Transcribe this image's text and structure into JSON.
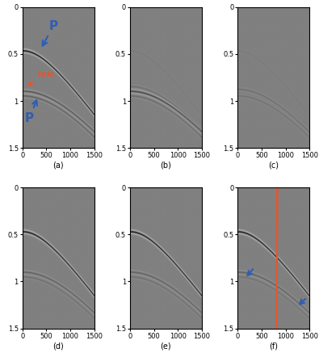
{
  "chart_data": [
    {
      "type": "image",
      "xlabel": "(a)",
      "xlim": [
        0,
        1500
      ],
      "ylim": [
        1.5,
        0
      ],
      "xticks": [
        0,
        500,
        1000,
        1500
      ],
      "yticks": [
        0,
        0.5,
        1,
        1.5
      ],
      "events": [
        {
          "t0": 0.47,
          "v": 1430,
          "amplitude": 1.0
        },
        {
          "t0": 0.9,
          "v": 1530,
          "amplitude": 0.4
        },
        {
          "t0": 0.95,
          "v": 1480,
          "amplitude": 0.3
        }
      ],
      "annotations": [
        {
          "text": "P",
          "x": 650,
          "y": 0.2,
          "arrow_to": [
            380,
            0.45
          ],
          "color": "#2e5db5"
        },
        {
          "text": "P",
          "x": 150,
          "y": 1.18,
          "arrow_to": [
            330,
            0.95
          ],
          "color": "#2e5db5"
        },
        {
          "text": "FSM",
          "x": 480,
          "y": 0.73,
          "arrow_to": [
            60,
            0.85
          ],
          "color": "#e8552a"
        }
      ]
    },
    {
      "type": "image",
      "xlabel": "(b)",
      "xlim": [
        0,
        1500
      ],
      "ylim": [
        1.5,
        0
      ],
      "xticks": [
        0,
        500,
        1000,
        1500
      ],
      "yticks": [
        0,
        0.5,
        1,
        1.5
      ],
      "events": [
        {
          "t0": 0.47,
          "v": 1430,
          "amplitude": 0.05
        },
        {
          "t0": 0.85,
          "v": 1500,
          "amplitude": 0.15
        },
        {
          "t0": 0.9,
          "v": 1530,
          "amplitude": 0.55
        },
        {
          "t0": 0.95,
          "v": 1480,
          "amplitude": 0.2
        }
      ]
    },
    {
      "type": "image",
      "xlabel": "(c)",
      "xlim": [
        0,
        1500
      ],
      "ylim": [
        1.5,
        0
      ],
      "xticks": [
        0,
        500,
        1000,
        1500
      ],
      "yticks": [
        0,
        0.5,
        1,
        1.5
      ],
      "events": [
        {
          "t0": 0.47,
          "v": 1430,
          "amplitude": 0.04
        },
        {
          "t0": 0.88,
          "v": 1500,
          "amplitude": 0.15
        },
        {
          "t0": 0.95,
          "v": 1480,
          "amplitude": 0.12
        }
      ]
    },
    {
      "type": "image",
      "xlabel": "(d)",
      "xlim": [
        0,
        1500
      ],
      "ylim": [
        1.5,
        0
      ],
      "xticks": [
        0,
        500,
        1000,
        1500
      ],
      "yticks": [
        0,
        0.5,
        1,
        1.5
      ],
      "events": [
        {
          "t0": 0.47,
          "v": 1430,
          "amplitude": 1.0
        },
        {
          "t0": 0.9,
          "v": 1530,
          "amplitude": 0.3
        },
        {
          "t0": 0.95,
          "v": 1480,
          "amplitude": 0.15
        }
      ]
    },
    {
      "type": "image",
      "xlabel": "(e)",
      "xlim": [
        0,
        1500
      ],
      "ylim": [
        1.5,
        0
      ],
      "xticks": [
        0,
        500,
        1000,
        1500
      ],
      "yticks": [
        0,
        0.5,
        1,
        1.5
      ],
      "events": [
        {
          "t0": 0.47,
          "v": 1430,
          "amplitude": 1.0
        },
        {
          "t0": 0.9,
          "v": 1530,
          "amplitude": 0.3
        },
        {
          "t0": 0.95,
          "v": 1480,
          "amplitude": 0.15
        }
      ]
    },
    {
      "type": "image",
      "xlabel": "(f)",
      "xlim": [
        0,
        1500
      ],
      "ylim": [
        1.5,
        0
      ],
      "xticks": [
        0,
        500,
        1000,
        1500
      ],
      "yticks": [
        0,
        0.5,
        1,
        1.5
      ],
      "events": [
        {
          "t0": 0.47,
          "v": 1430,
          "amplitude": 1.0
        },
        {
          "t0": 0.9,
          "v": 1530,
          "amplitude": 0.3
        },
        {
          "t0": 0.95,
          "v": 1480,
          "amplitude": 0.12
        }
      ]
    }
  ]
}
